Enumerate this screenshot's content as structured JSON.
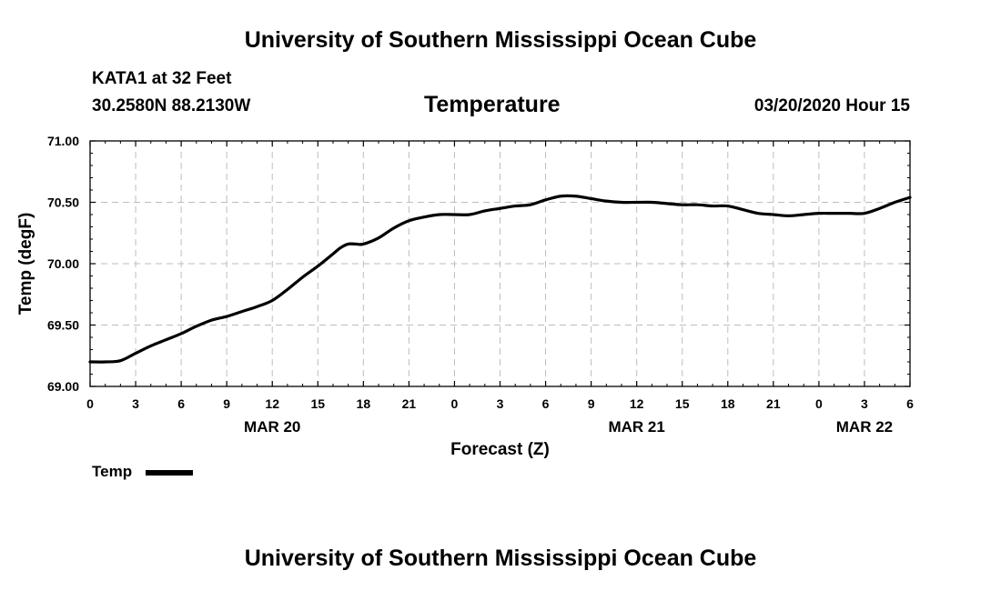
{
  "header": {
    "title_top": "University of Southern Mississippi Ocean Cube",
    "title_bottom": "University of Southern Mississippi Ocean Cube",
    "station": "KATA1 at 32 Feet",
    "coords": "30.2580N 88.2130W",
    "plot_title": "Temperature",
    "timestamp": "03/20/2020 Hour 15"
  },
  "legend": {
    "label": "Temp",
    "color": "#000000"
  },
  "chart_data": {
    "type": "line",
    "title": "Temperature",
    "xlabel": "Forecast (Z)",
    "ylabel": "Temp (degF)",
    "x_unit": "hours since MAR 20 00Z",
    "xlim": [
      0,
      54
    ],
    "ylim": [
      69.0,
      71.0
    ],
    "grid": true,
    "legend_position": "bottom-left",
    "x_ticks": [
      0,
      3,
      6,
      9,
      12,
      15,
      18,
      21,
      24,
      27,
      30,
      33,
      36,
      39,
      42,
      45,
      48,
      51,
      54
    ],
    "x_tick_labels": [
      "0",
      "3",
      "6",
      "9",
      "12",
      "15",
      "18",
      "21",
      "0",
      "3",
      "6",
      "9",
      "12",
      "15",
      "18",
      "21",
      "0",
      "3",
      "6"
    ],
    "y_ticks": [
      69.0,
      69.5,
      70.0,
      70.5,
      71.0
    ],
    "y_tick_labels": [
      "69.00",
      "69.50",
      "70.00",
      "70.50",
      "71.00"
    ],
    "date_labels": [
      {
        "x": 12,
        "label": "MAR 20"
      },
      {
        "x": 36,
        "label": "MAR 21"
      },
      {
        "x": 51,
        "label": "MAR 22"
      }
    ],
    "series": [
      {
        "name": "Temp",
        "color": "#000000",
        "x": [
          0,
          1,
          2,
          3,
          4,
          5,
          6,
          7,
          8,
          9,
          10,
          11,
          12,
          13,
          14,
          15,
          16,
          16.5,
          17,
          17.5,
          18,
          19,
          20,
          21,
          22,
          23,
          24,
          25,
          26,
          27,
          28,
          29,
          30,
          31,
          32,
          33,
          34,
          35,
          36,
          37,
          38,
          39,
          40,
          41,
          42,
          43,
          44,
          45,
          46,
          47,
          48,
          49,
          50,
          51,
          52,
          53,
          54
        ],
        "values": [
          69.2,
          69.2,
          69.21,
          69.27,
          69.33,
          69.38,
          69.43,
          69.49,
          69.54,
          69.57,
          69.61,
          69.65,
          69.7,
          69.79,
          69.89,
          69.98,
          70.08,
          70.13,
          70.16,
          70.16,
          70.16,
          70.21,
          70.29,
          70.35,
          70.38,
          70.4,
          70.4,
          70.4,
          70.43,
          70.45,
          70.47,
          70.48,
          70.52,
          70.55,
          70.55,
          70.53,
          70.51,
          70.5,
          70.5,
          70.5,
          70.49,
          70.48,
          70.48,
          70.47,
          70.47,
          70.44,
          70.41,
          70.4,
          70.39,
          70.4,
          70.41,
          70.41,
          70.41,
          70.41,
          70.45,
          70.5,
          70.54
        ]
      }
    ]
  }
}
